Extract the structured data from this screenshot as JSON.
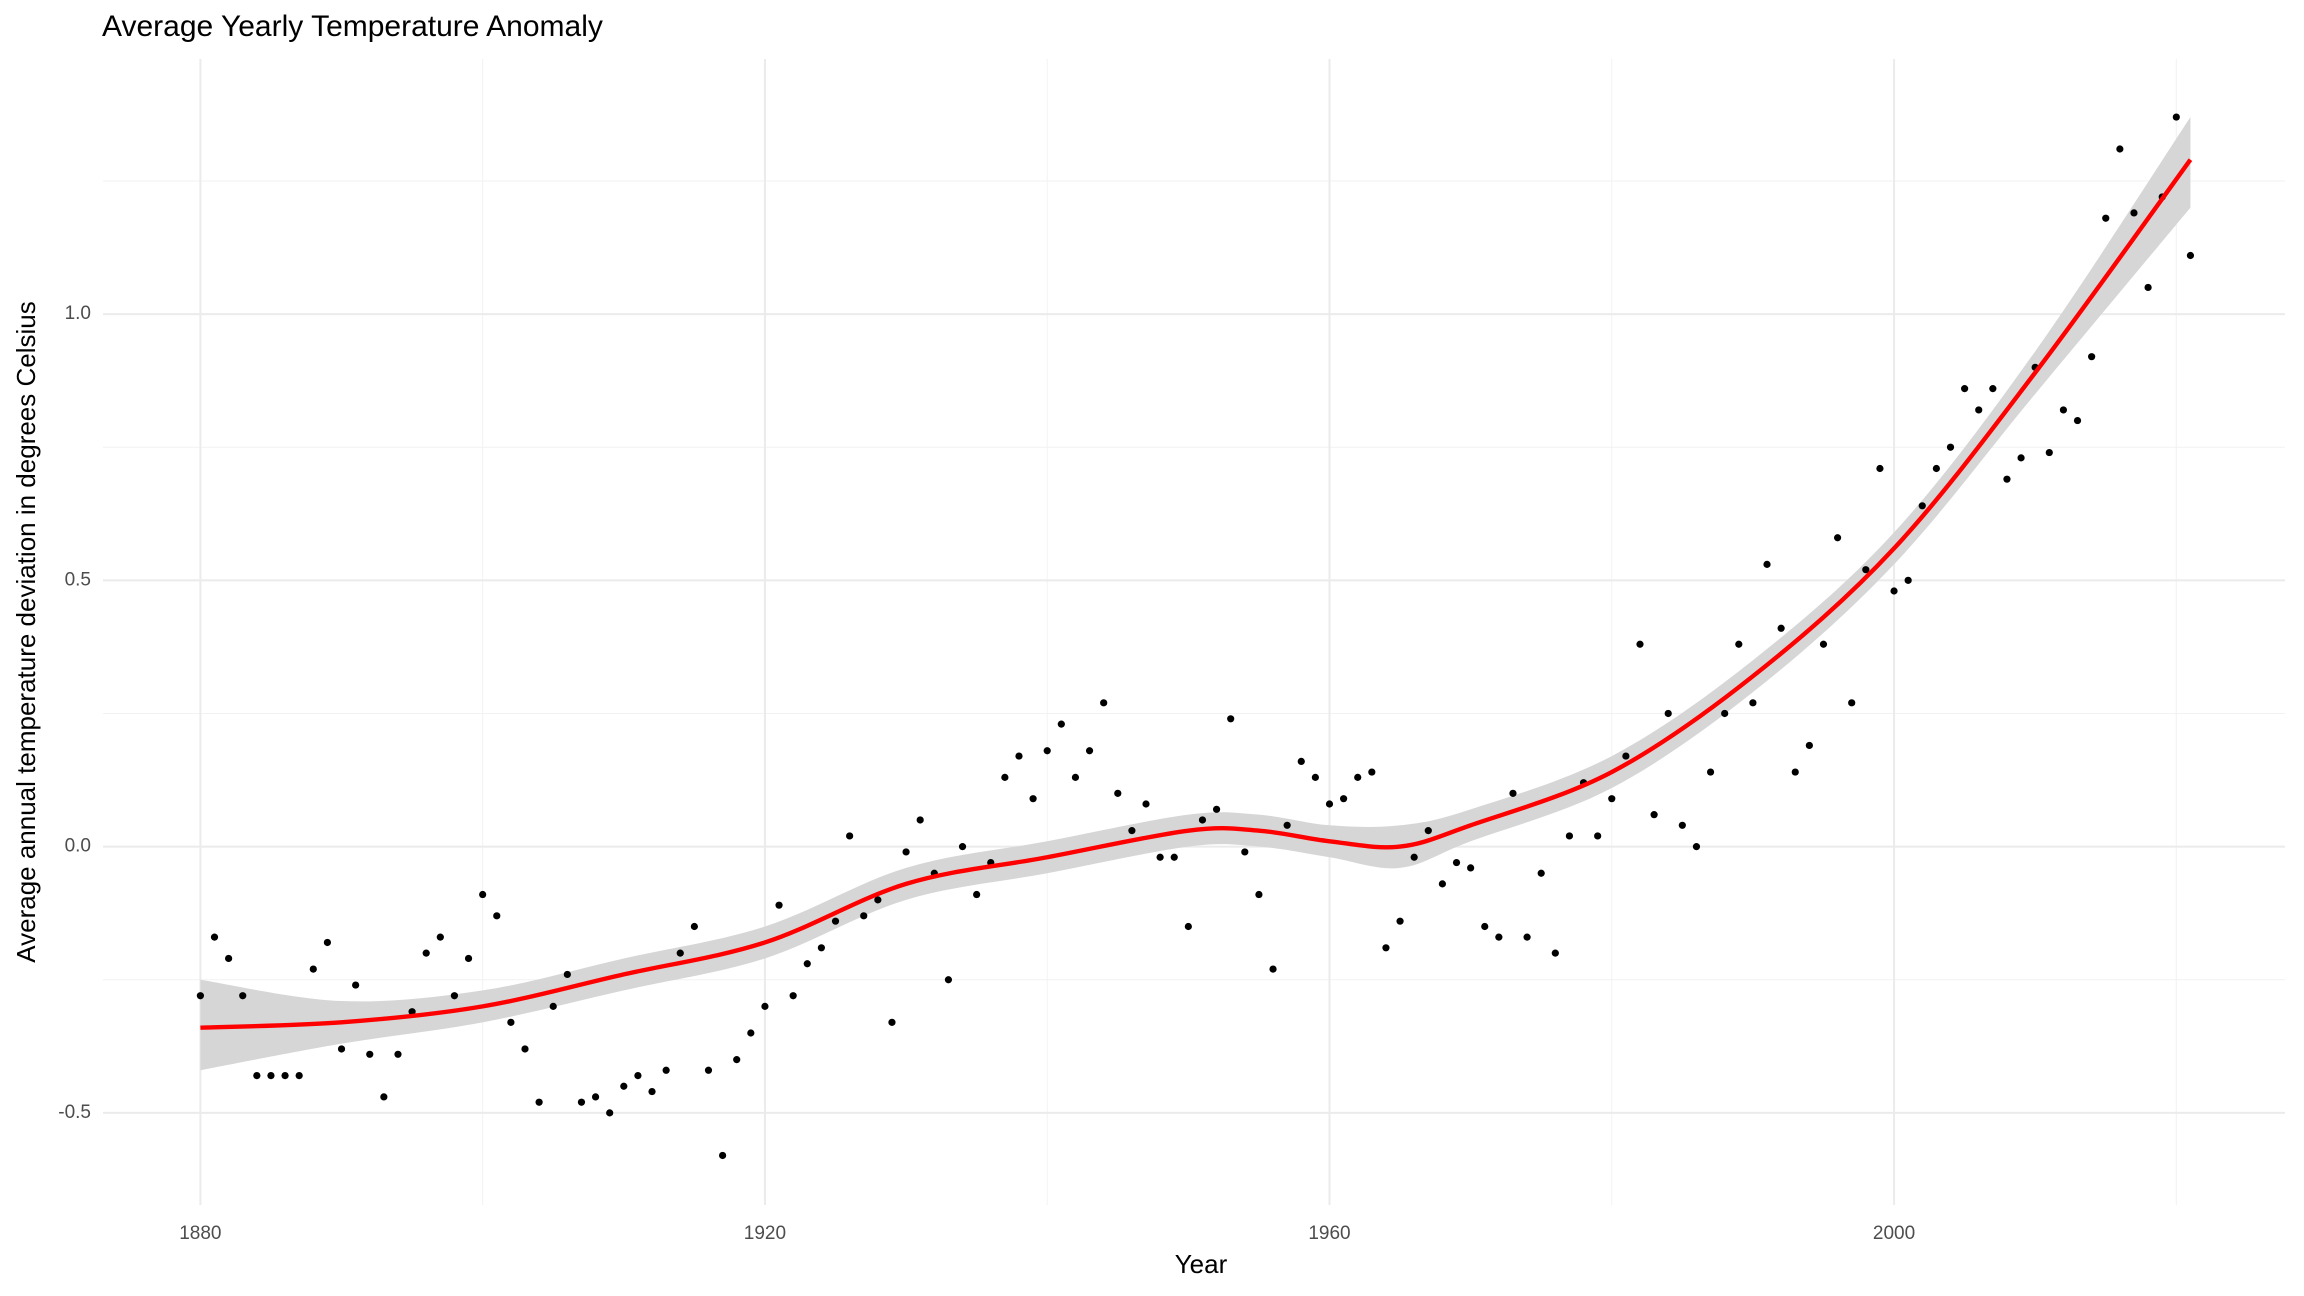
{
  "chart_data": {
    "type": "scatter",
    "title": "Average Yearly Temperature Anomaly",
    "x_label": "Year",
    "y_label": "Average annual temperature deviation in degrees Celsius",
    "color": "#000000",
    "x": [
      1880,
      1881,
      1882,
      1883,
      1884,
      1885,
      1886,
      1887,
      1888,
      1889,
      1890,
      1891,
      1892,
      1893,
      1894,
      1895,
      1896,
      1897,
      1898,
      1899,
      1900,
      1901,
      1902,
      1903,
      1904,
      1905,
      1906,
      1907,
      1908,
      1909,
      1910,
      1911,
      1912,
      1913,
      1914,
      1915,
      1916,
      1917,
      1918,
      1919,
      1920,
      1921,
      1922,
      1923,
      1924,
      1925,
      1926,
      1927,
      1928,
      1929,
      1930,
      1931,
      1932,
      1933,
      1934,
      1935,
      1936,
      1937,
      1938,
      1939,
      1940,
      1941,
      1942,
      1943,
      1944,
      1945,
      1946,
      1947,
      1948,
      1949,
      1950,
      1951,
      1952,
      1953,
      1954,
      1955,
      1956,
      1957,
      1958,
      1959,
      1960,
      1961,
      1962,
      1963,
      1964,
      1965,
      1966,
      1967,
      1968,
      1969,
      1970,
      1971,
      1972,
      1973,
      1974,
      1975,
      1976,
      1977,
      1978,
      1979,
      1980,
      1981,
      1982,
      1983,
      1984,
      1985,
      1986,
      1987,
      1988,
      1989,
      1990,
      1991,
      1992,
      1993,
      1994,
      1995,
      1996,
      1997,
      1998,
      1999,
      2000,
      2001,
      2002,
      2003,
      2004,
      2005,
      2006,
      2007,
      2008,
      2009,
      2010,
      2011,
      2012,
      2013,
      2014,
      2015,
      2016,
      2017,
      2018,
      2019,
      2020,
      2021
    ],
    "values": [
      -0.28,
      -0.17,
      -0.21,
      -0.28,
      -0.43,
      -0.43,
      -0.43,
      -0.43,
      -0.23,
      -0.18,
      -0.38,
      -0.26,
      -0.39,
      -0.47,
      -0.39,
      -0.31,
      -0.2,
      -0.17,
      -0.28,
      -0.21,
      -0.09,
      -0.13,
      -0.33,
      -0.38,
      -0.48,
      -0.3,
      -0.24,
      -0.48,
      -0.47,
      -0.5,
      -0.45,
      -0.43,
      -0.46,
      -0.42,
      -0.2,
      -0.15,
      -0.42,
      -0.58,
      -0.4,
      -0.35,
      -0.3,
      -0.11,
      -0.28,
      -0.22,
      -0.19,
      -0.14,
      0.02,
      -0.13,
      -0.1,
      -0.33,
      -0.01,
      0.05,
      -0.05,
      -0.25,
      0.0,
      -0.09,
      -0.03,
      0.13,
      0.17,
      0.09,
      0.18,
      0.23,
      0.13,
      0.18,
      0.27,
      0.1,
      0.03,
      0.08,
      -0.02,
      -0.02,
      -0.15,
      0.05,
      0.07,
      0.24,
      -0.01,
      -0.09,
      -0.23,
      0.04,
      0.16,
      0.13,
      0.08,
      0.09,
      0.13,
      0.14,
      -0.19,
      -0.14,
      -0.02,
      0.03,
      -0.07,
      -0.03,
      -0.04,
      -0.15,
      -0.17,
      0.1,
      -0.17,
      -0.05,
      -0.2,
      0.02,
      0.12,
      0.02,
      0.09,
      0.17,
      0.38,
      0.06,
      0.25,
      0.04,
      0.0,
      0.14,
      0.25,
      0.38,
      0.27,
      0.53,
      0.41,
      0.14,
      0.19,
      0.38,
      0.58,
      0.27,
      0.52,
      0.71,
      0.48,
      0.5,
      0.64,
      0.71,
      0.75,
      0.86,
      0.82,
      0.86,
      0.69,
      0.73,
      0.9,
      0.74,
      0.82,
      0.8,
      0.92,
      1.18,
      1.31,
      1.19,
      1.05,
      1.22,
      1.37,
      1.11
    ],
    "smooth": {
      "color": "#ff0000",
      "band_color": "#d6d6d6",
      "x": [
        1880,
        1890,
        1900,
        1910,
        1920,
        1930,
        1940,
        1950,
        1955,
        1960,
        1965,
        1970,
        1980,
        1990,
        2000,
        2010,
        2021
      ],
      "values": [
        -0.34,
        -0.33,
        -0.3,
        -0.24,
        -0.18,
        -0.07,
        -0.02,
        0.03,
        0.03,
        0.01,
        0.0,
        0.04,
        0.14,
        0.32,
        0.56,
        0.89,
        1.29
      ],
      "lower": [
        -0.42,
        -0.37,
        -0.33,
        -0.27,
        -0.21,
        -0.1,
        -0.05,
        0.0,
        0.0,
        -0.02,
        -0.04,
        0.01,
        0.11,
        0.29,
        0.53,
        0.85,
        1.2
      ],
      "upper": [
        -0.25,
        -0.29,
        -0.27,
        -0.21,
        -0.15,
        -0.04,
        0.01,
        0.06,
        0.06,
        0.04,
        0.04,
        0.07,
        0.17,
        0.35,
        0.59,
        0.93,
        1.37
      ]
    },
    "xlim": [
      1873.1,
      2027.7
    ],
    "ylim": [
      -0.673,
      1.479
    ],
    "xticks": [
      1880,
      1920,
      1960,
      2000
    ],
    "yticks": [
      {
        "value": 1.0,
        "label": "1.0"
      },
      0.5,
      {
        "value": 0.0,
        "label": "0.0"
      },
      -0.5
    ],
    "minor_xticks": [
      1900,
      1940,
      1980,
      2020
    ],
    "minor_yticks": [
      -0.25,
      0.25,
      0.75,
      1.25
    ],
    "grid": true
  }
}
